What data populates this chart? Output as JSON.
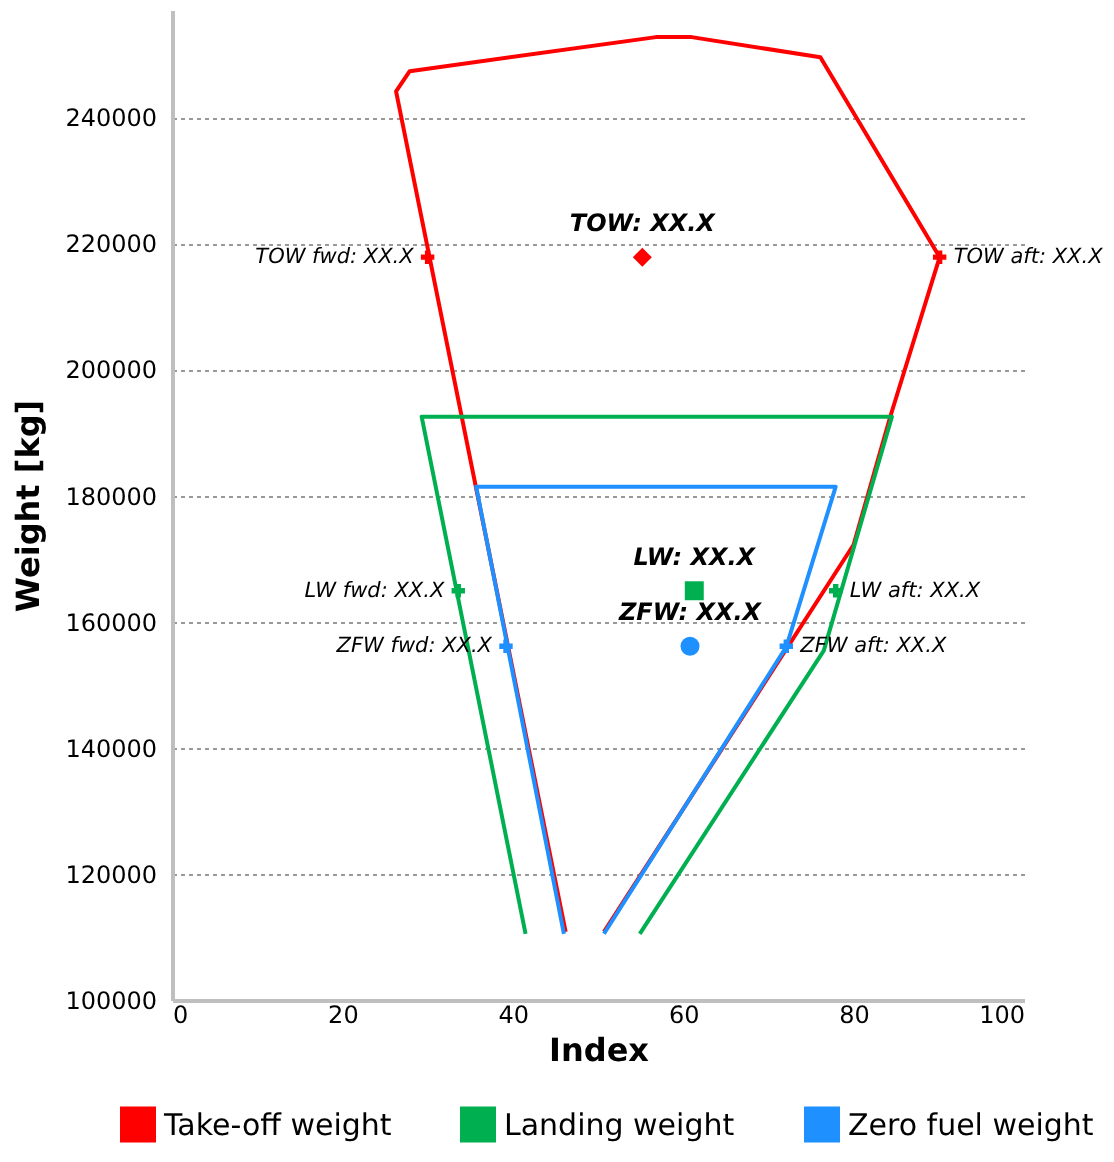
{
  "chart_data": {
    "type": "scatter",
    "xlabel": "Index",
    "ylabel": "Weight [kg]",
    "xlim": [
      0,
      100
    ],
    "xticks": [
      0,
      20,
      40,
      60,
      80,
      100
    ],
    "ylim": [
      100000,
      257000
    ],
    "yticks": [
      100000,
      120000,
      140000,
      160000,
      180000,
      200000,
      220000,
      240000
    ],
    "grid": "y",
    "legend": "bottom",
    "series": [
      {
        "name": "Take-off weight",
        "type": "line",
        "color": "#ff0000",
        "x": [
          46.2,
          26.3,
          27.9,
          56.8,
          61.0,
          76.1,
          90.1,
          84.3,
          80.0,
          50.7
        ],
        "values": [
          110800,
          244100,
          247300,
          252700,
          252700,
          249500,
          217800,
          192500,
          172200,
          110800
        ]
      },
      {
        "name": "Landing weight",
        "type": "line",
        "color": "#00b050",
        "x": [
          41.5,
          29.3,
          84.5,
          76.5,
          54.9
        ],
        "values": [
          110500,
          192500,
          192500,
          155400,
          110500
        ]
      },
      {
        "name": "Zero fuel weight",
        "type": "line",
        "color": "#1e90ff",
        "x": [
          46.0,
          35.7,
          77.9,
          72.1,
          50.7
        ],
        "values": [
          110500,
          181400,
          181400,
          156000,
          110500
        ]
      },
      {
        "color": "#ff0000",
        "marker": "diamond",
        "x": [
          55.2
        ],
        "values": [
          217800
        ],
        "value_labels": [
          "TOW: XX.X"
        ]
      },
      {
        "type": "scatter",
        "color": "#ff0000",
        "marker": "cross",
        "x": [
          30.0,
          90.1
        ],
        "values": [
          217800,
          217800
        ],
        "value_labels": [
          "TOW fwd: XX.X",
          "TOW aft: XX.X"
        ]
      },
      {
        "color": "#00b050",
        "marker": "square",
        "x": [
          61.3
        ],
        "values": [
          164900
        ],
        "value_labels": [
          "LW: XX.X"
        ]
      },
      {
        "type": "scatter",
        "color": "#00b050",
        "marker": "cross",
        "x": [
          33.6,
          77.9
        ],
        "values": [
          164900,
          164900
        ],
        "value_labels": [
          "LW fwd: XX.X",
          "LW aft: XX.X"
        ]
      },
      {
        "color": "#1e90ff",
        "marker": "circle",
        "x": [
          60.8
        ],
        "values": [
          156100
        ],
        "value_labels": [
          "ZFW: XX.X"
        ]
      },
      {
        "type": "scatter",
        "color": "#1e90ff",
        "marker": "cross",
        "x": [
          39.2,
          72.1
        ],
        "values": [
          156100,
          156100
        ],
        "value_labels": [
          "ZFW fwd: XX.X",
          "ZFW aft: XX.X"
        ]
      }
    ]
  }
}
